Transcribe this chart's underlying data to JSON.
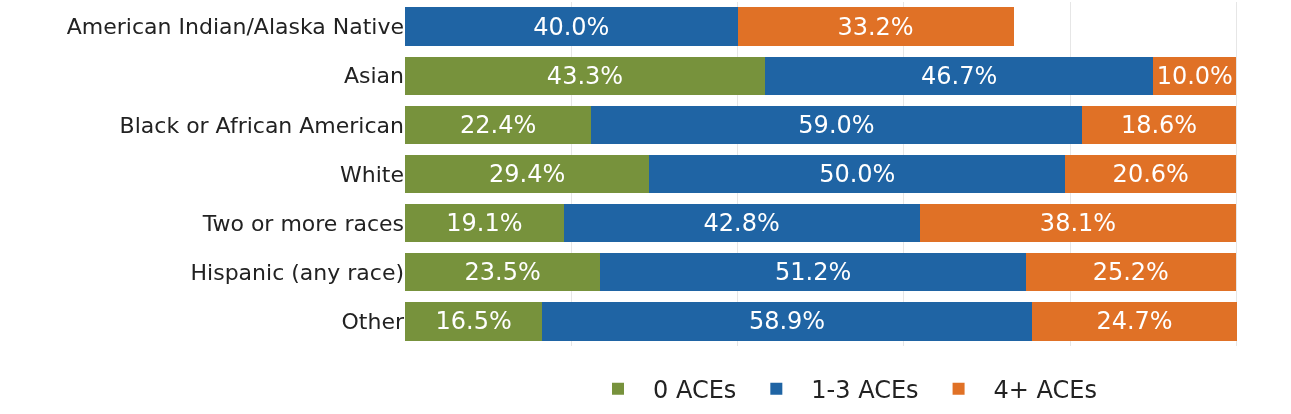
{
  "chart_data": {
    "type": "bar",
    "orientation": "horizontal",
    "stacked": true,
    "categories": [
      "American Indian/Alaska Native",
      "Asian",
      "Black or African American",
      "White",
      "Two or more races",
      "Hispanic (any race)",
      "Other"
    ],
    "series": [
      {
        "name": "0 ACEs",
        "color": "#77923c",
        "values": [
          null,
          43.3,
          22.4,
          29.4,
          19.1,
          23.5,
          16.5
        ],
        "value_labels": [
          null,
          "43.3%",
          "22.4%",
          "29.4%",
          "19.1%",
          "23.5%",
          "16.5%"
        ]
      },
      {
        "name": "1-3 ACEs",
        "color": "#1f64a4",
        "values": [
          40.0,
          46.7,
          59.0,
          50.0,
          42.8,
          51.2,
          58.9
        ],
        "value_labels": [
          "40.0%",
          "46.7%",
          "59.0%",
          "50.0%",
          "42.8%",
          "51.2%",
          "58.9%"
        ]
      },
      {
        "name": "4+ ACEs",
        "color": "#e07126",
        "values": [
          33.2,
          10.0,
          18.6,
          20.6,
          38.1,
          25.2,
          24.7
        ],
        "value_labels": [
          "33.2%",
          "10.0%",
          "18.6%",
          "20.6%",
          "38.1%",
          "25.2%",
          "24.7%"
        ]
      }
    ],
    "grid": "x",
    "legend": "bottom"
  }
}
